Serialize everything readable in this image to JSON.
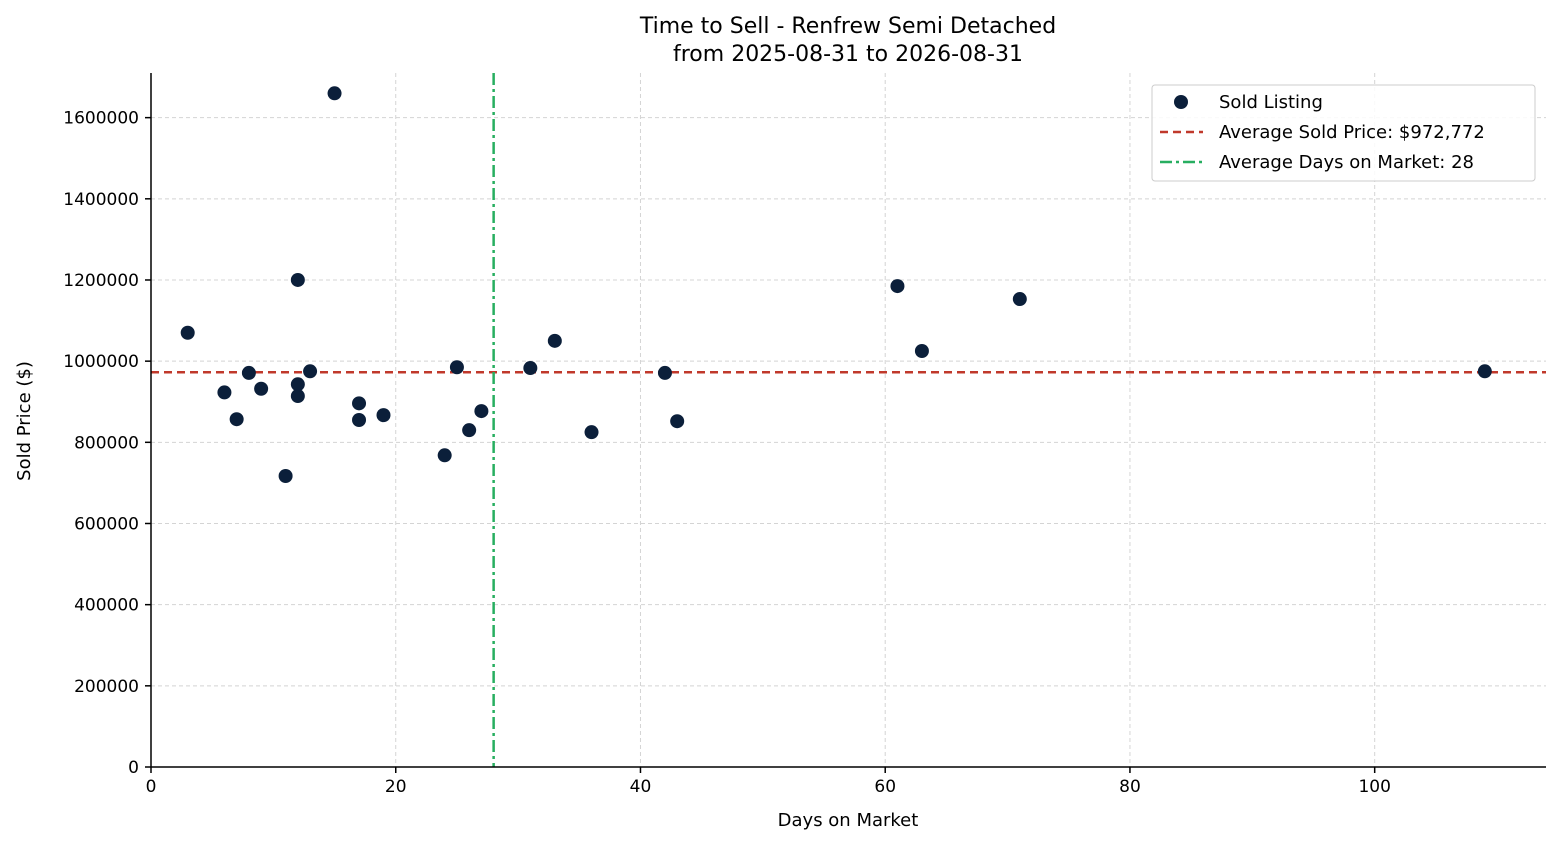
{
  "chart_data": {
    "type": "scatter",
    "title_line1": "Time to Sell - Renfrew Semi Detached",
    "title_line2": "from 2025-08-31 to 2026-08-31",
    "xlabel": "Days on Market",
    "ylabel": "Sold Price ($)",
    "xlim": [
      0,
      114
    ],
    "ylim": [
      0,
      1710000
    ],
    "xticks": [
      0,
      20,
      40,
      60,
      80,
      100
    ],
    "xtick_labels": [
      "0",
      "20",
      "40",
      "60",
      "80",
      "100"
    ],
    "yticks": [
      0,
      200000,
      400000,
      600000,
      800000,
      1000000,
      1200000,
      1400000,
      1600000
    ],
    "ytick_labels": [
      "0",
      "200000",
      "400000",
      "600000",
      "800000",
      "1000000",
      "1200000",
      "1400000",
      "1600000"
    ],
    "grid": true,
    "legend_position": "top-right",
    "series": [
      {
        "name": "Sold Listing",
        "color": "#0b1f3a",
        "points": [
          [
            3,
            1070000
          ],
          [
            6,
            923000
          ],
          [
            7,
            857000
          ],
          [
            8,
            971000
          ],
          [
            9,
            932000
          ],
          [
            11,
            717000
          ],
          [
            12,
            1200000
          ],
          [
            12,
            943000
          ],
          [
            12,
            914000
          ],
          [
            13,
            975000
          ],
          [
            15,
            1660000
          ],
          [
            17,
            896000
          ],
          [
            17,
            855000
          ],
          [
            19,
            867000
          ],
          [
            24,
            768000
          ],
          [
            25,
            985000
          ],
          [
            26,
            830000
          ],
          [
            27,
            877000
          ],
          [
            31,
            983000
          ],
          [
            33,
            1050000
          ],
          [
            36,
            825000
          ],
          [
            42,
            971000
          ],
          [
            43,
            852000
          ],
          [
            61,
            1185000
          ],
          [
            63,
            1025000
          ],
          [
            71,
            1153000
          ],
          [
            109,
            975000
          ]
        ]
      }
    ],
    "reference_lines": {
      "avg_price": {
        "label": "Average Sold Price: $972,772",
        "value": 972772,
        "color": "#c0392b",
        "style": "dashed"
      },
      "avg_days": {
        "label": "Average Days on Market: 28",
        "value": 28,
        "color": "#27ae60",
        "style": "dashdot"
      }
    }
  }
}
